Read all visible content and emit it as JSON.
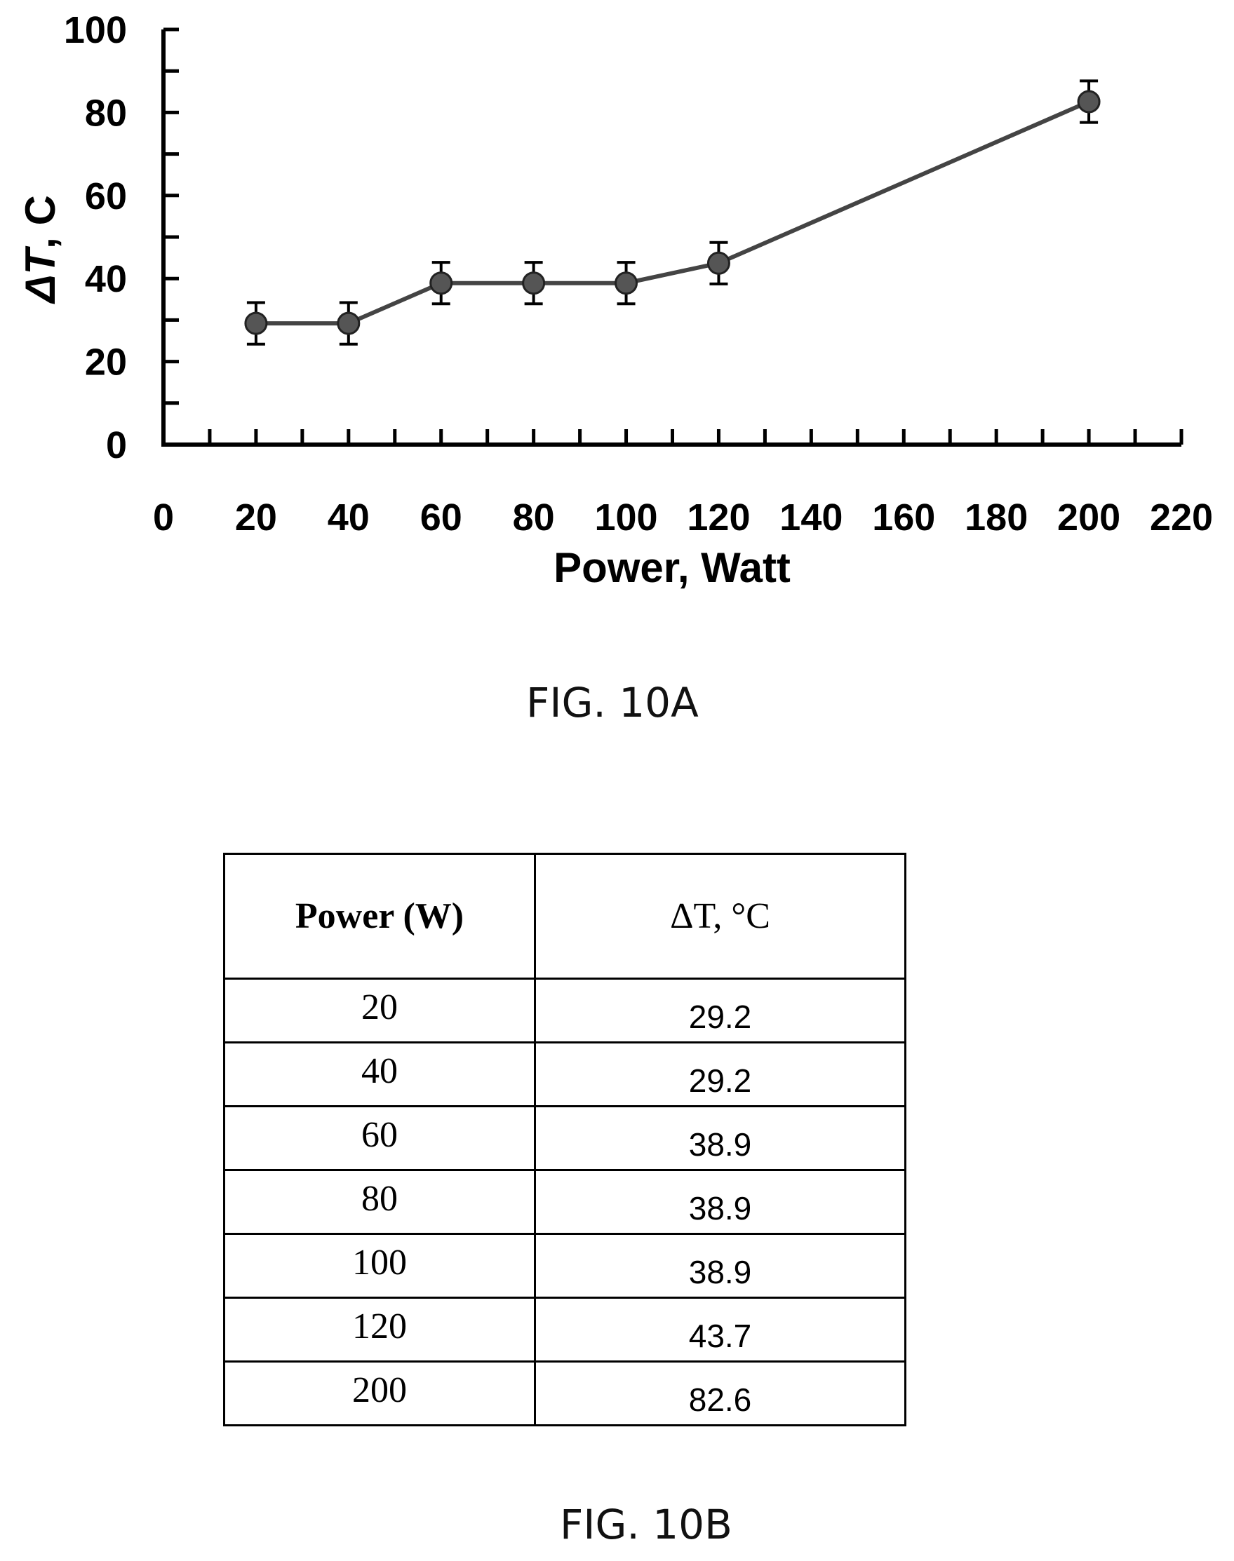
{
  "chart_data": {
    "type": "line",
    "x": [
      20,
      40,
      60,
      80,
      100,
      120,
      200
    ],
    "y": [
      29.2,
      29.2,
      38.9,
      38.9,
      38.9,
      43.7,
      82.6
    ],
    "error": [
      5,
      5,
      5,
      5,
      5,
      5,
      5
    ],
    "xlabel": "Power, Watt",
    "ylabel": "ΔT, C",
    "ylabel_italic_part": "ΔT",
    "ylabel_rest": ", C",
    "xlim": [
      0,
      220
    ],
    "ylim": [
      0,
      100
    ],
    "xticks": [
      0,
      20,
      40,
      60,
      80,
      100,
      120,
      140,
      160,
      180,
      200,
      220
    ],
    "yticks": [
      0,
      20,
      40,
      60,
      80,
      100
    ],
    "grid": false,
    "legend": "none",
    "line_color": "#444444",
    "marker_color": "#555555"
  },
  "fig_a_caption": "FIG. 10A",
  "fig_b_caption": "FIG. 10B",
  "table": {
    "headers": [
      "Power (W)",
      "ΔT, °C"
    ],
    "rows": [
      [
        "20",
        "29.2"
      ],
      [
        "40",
        "29.2"
      ],
      [
        "60",
        "38.9"
      ],
      [
        "80",
        "38.9"
      ],
      [
        "100",
        "38.9"
      ],
      [
        "120",
        "43.7"
      ],
      [
        "200",
        "82.6"
      ]
    ]
  }
}
